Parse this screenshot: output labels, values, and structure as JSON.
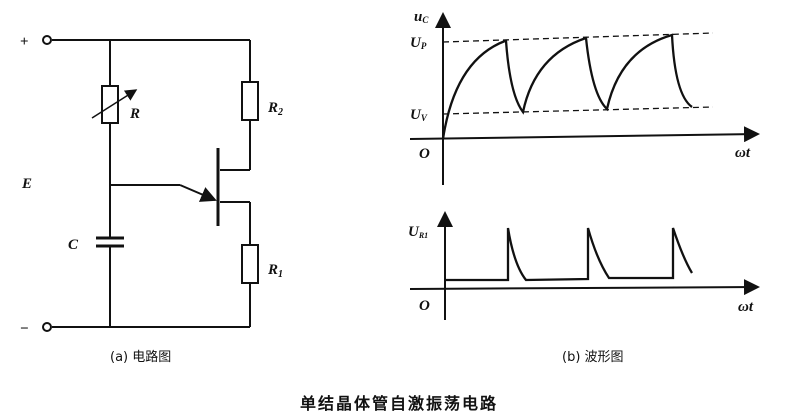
{
  "circuit": {
    "plus_terminal": "+",
    "minus_terminal": "−",
    "source_label": "E",
    "variable_resistor_label": "R",
    "resistor2_label": "R",
    "resistor2_sub": "2",
    "resistor1_label": "R",
    "resistor1_sub": "1",
    "capacitor_label": "C",
    "caption": "(a) 电路图"
  },
  "waveform": {
    "top_y_label": "u",
    "top_y_sub": "C",
    "peak_label": "U",
    "peak_sub": "P",
    "valley_label": "U",
    "valley_sub": "V",
    "origin_label": "O",
    "x_label": "ωt",
    "bottom_y_label": "U",
    "bottom_y_sub": "R1",
    "bottom_origin_label": "O",
    "bottom_x_label": "ωt",
    "caption": "(b) 波形图"
  },
  "title": "单结晶体管自激振荡电路"
}
